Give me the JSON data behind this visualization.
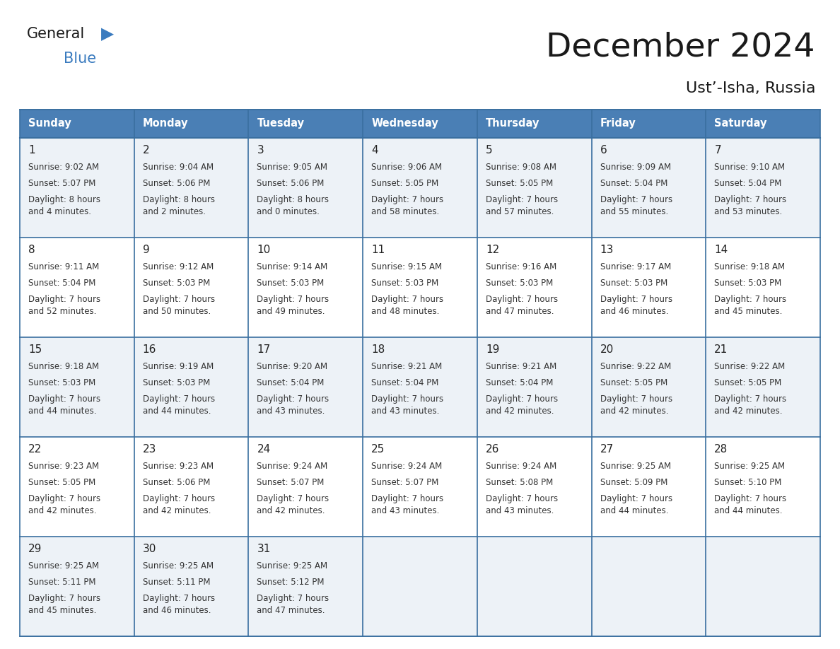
{
  "title": "December 2024",
  "subtitle": "Ust’-Isha, Russia",
  "days_of_week": [
    "Sunday",
    "Monday",
    "Tuesday",
    "Wednesday",
    "Thursday",
    "Friday",
    "Saturday"
  ],
  "header_bg": "#4a7fb5",
  "header_text": "#ffffff",
  "cell_bg_odd": "#edf2f7",
  "cell_bg_even": "#ffffff",
  "border_color": "#3a6fa0",
  "text_color": "#333333",
  "day_number_color": "#222222",
  "title_color": "#1a1a1a",
  "logo_black": "#1a1a1a",
  "logo_blue": "#3a7bbf",
  "calendar_data": [
    [
      {
        "day": "1",
        "sunrise": "9:02 AM",
        "sunset": "5:07 PM",
        "daylight": "8 hours\nand 4 minutes."
      },
      {
        "day": "2",
        "sunrise": "9:04 AM",
        "sunset": "5:06 PM",
        "daylight": "8 hours\nand 2 minutes."
      },
      {
        "day": "3",
        "sunrise": "9:05 AM",
        "sunset": "5:06 PM",
        "daylight": "8 hours\nand 0 minutes."
      },
      {
        "day": "4",
        "sunrise": "9:06 AM",
        "sunset": "5:05 PM",
        "daylight": "7 hours\nand 58 minutes."
      },
      {
        "day": "5",
        "sunrise": "9:08 AM",
        "sunset": "5:05 PM",
        "daylight": "7 hours\nand 57 minutes."
      },
      {
        "day": "6",
        "sunrise": "9:09 AM",
        "sunset": "5:04 PM",
        "daylight": "7 hours\nand 55 minutes."
      },
      {
        "day": "7",
        "sunrise": "9:10 AM",
        "sunset": "5:04 PM",
        "daylight": "7 hours\nand 53 minutes."
      }
    ],
    [
      {
        "day": "8",
        "sunrise": "9:11 AM",
        "sunset": "5:04 PM",
        "daylight": "7 hours\nand 52 minutes."
      },
      {
        "day": "9",
        "sunrise": "9:12 AM",
        "sunset": "5:03 PM",
        "daylight": "7 hours\nand 50 minutes."
      },
      {
        "day": "10",
        "sunrise": "9:14 AM",
        "sunset": "5:03 PM",
        "daylight": "7 hours\nand 49 minutes."
      },
      {
        "day": "11",
        "sunrise": "9:15 AM",
        "sunset": "5:03 PM",
        "daylight": "7 hours\nand 48 minutes."
      },
      {
        "day": "12",
        "sunrise": "9:16 AM",
        "sunset": "5:03 PM",
        "daylight": "7 hours\nand 47 minutes."
      },
      {
        "day": "13",
        "sunrise": "9:17 AM",
        "sunset": "5:03 PM",
        "daylight": "7 hours\nand 46 minutes."
      },
      {
        "day": "14",
        "sunrise": "9:18 AM",
        "sunset": "5:03 PM",
        "daylight": "7 hours\nand 45 minutes."
      }
    ],
    [
      {
        "day": "15",
        "sunrise": "9:18 AM",
        "sunset": "5:03 PM",
        "daylight": "7 hours\nand 44 minutes."
      },
      {
        "day": "16",
        "sunrise": "9:19 AM",
        "sunset": "5:03 PM",
        "daylight": "7 hours\nand 44 minutes."
      },
      {
        "day": "17",
        "sunrise": "9:20 AM",
        "sunset": "5:04 PM",
        "daylight": "7 hours\nand 43 minutes."
      },
      {
        "day": "18",
        "sunrise": "9:21 AM",
        "sunset": "5:04 PM",
        "daylight": "7 hours\nand 43 minutes."
      },
      {
        "day": "19",
        "sunrise": "9:21 AM",
        "sunset": "5:04 PM",
        "daylight": "7 hours\nand 42 minutes."
      },
      {
        "day": "20",
        "sunrise": "9:22 AM",
        "sunset": "5:05 PM",
        "daylight": "7 hours\nand 42 minutes."
      },
      {
        "day": "21",
        "sunrise": "9:22 AM",
        "sunset": "5:05 PM",
        "daylight": "7 hours\nand 42 minutes."
      }
    ],
    [
      {
        "day": "22",
        "sunrise": "9:23 AM",
        "sunset": "5:05 PM",
        "daylight": "7 hours\nand 42 minutes."
      },
      {
        "day": "23",
        "sunrise": "9:23 AM",
        "sunset": "5:06 PM",
        "daylight": "7 hours\nand 42 minutes."
      },
      {
        "day": "24",
        "sunrise": "9:24 AM",
        "sunset": "5:07 PM",
        "daylight": "7 hours\nand 42 minutes."
      },
      {
        "day": "25",
        "sunrise": "9:24 AM",
        "sunset": "5:07 PM",
        "daylight": "7 hours\nand 43 minutes."
      },
      {
        "day": "26",
        "sunrise": "9:24 AM",
        "sunset": "5:08 PM",
        "daylight": "7 hours\nand 43 minutes."
      },
      {
        "day": "27",
        "sunrise": "9:25 AM",
        "sunset": "5:09 PM",
        "daylight": "7 hours\nand 44 minutes."
      },
      {
        "day": "28",
        "sunrise": "9:25 AM",
        "sunset": "5:10 PM",
        "daylight": "7 hours\nand 44 minutes."
      }
    ],
    [
      {
        "day": "29",
        "sunrise": "9:25 AM",
        "sunset": "5:11 PM",
        "daylight": "7 hours\nand 45 minutes."
      },
      {
        "day": "30",
        "sunrise": "9:25 AM",
        "sunset": "5:11 PM",
        "daylight": "7 hours\nand 46 minutes."
      },
      {
        "day": "31",
        "sunrise": "9:25 AM",
        "sunset": "5:12 PM",
        "daylight": "7 hours\nand 47 minutes."
      },
      null,
      null,
      null,
      null
    ]
  ]
}
